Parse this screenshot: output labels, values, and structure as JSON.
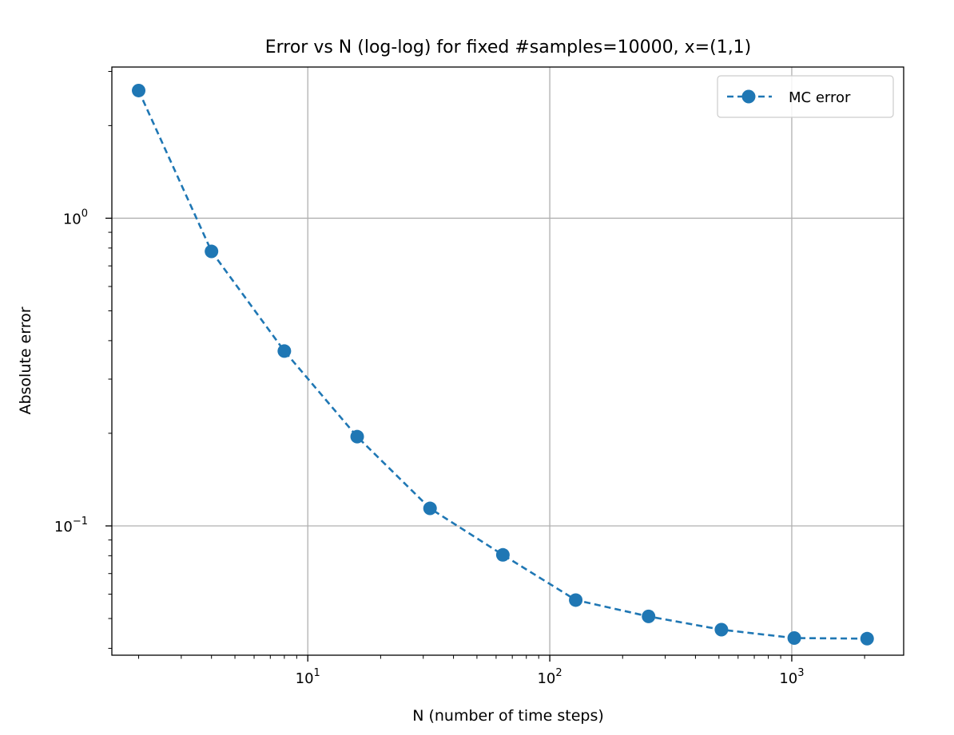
{
  "chart_data": {
    "type": "line",
    "title": "Error vs N (log-log) for fixed #samples=10000, x=(1,1)",
    "xlabel": "N (number of time steps)",
    "ylabel": "Absolute error",
    "xscale": "log",
    "yscale": "log",
    "xlim": [
      1.55,
      2900
    ],
    "ylim": [
      0.038,
      3.1
    ],
    "grid": true,
    "legend_position": "top-right",
    "x_ticks": [
      {
        "value": 10,
        "base": "10",
        "exp": "1"
      },
      {
        "value": 100,
        "base": "10",
        "exp": "2"
      },
      {
        "value": 1000,
        "base": "10",
        "exp": "3"
      }
    ],
    "y_ticks": [
      {
        "value": 1,
        "base": "10",
        "exp": "0"
      },
      {
        "value": 0.1,
        "base": "10",
        "exp": "−1"
      }
    ],
    "series": [
      {
        "name": "MC error",
        "color": "#1f77b4",
        "linestyle": "dashed",
        "marker": "circle",
        "x": [
          2,
          4,
          8,
          16,
          32,
          64,
          128,
          256,
          512,
          1024,
          2048
        ],
        "y": [
          2.6,
          0.78,
          0.37,
          0.195,
          0.114,
          0.0805,
          0.0574,
          0.0508,
          0.046,
          0.0432,
          0.043
        ]
      }
    ]
  }
}
